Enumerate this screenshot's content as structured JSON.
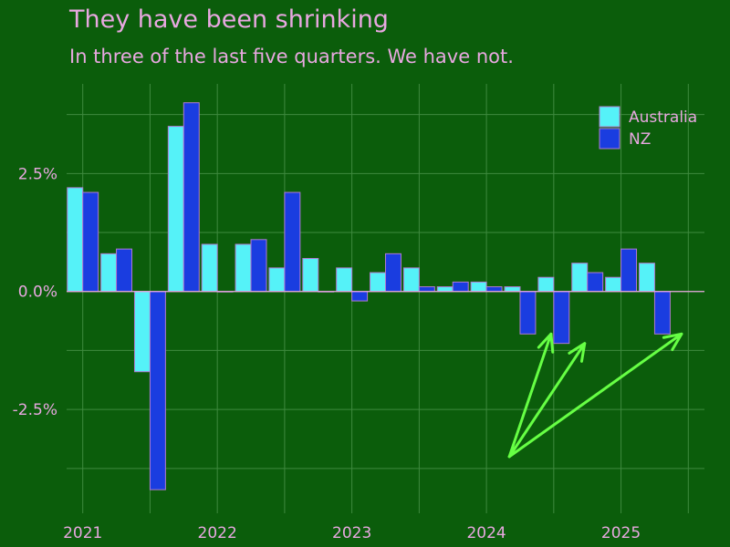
{
  "colors": {
    "background": "#0b5d0b",
    "text": "#e8a8e0",
    "grid": "#3f8a3f",
    "axis": "#e8a8e0",
    "annotation": "#66ff44"
  },
  "chart_data": {
    "type": "bar",
    "title": "They have been shrinking",
    "subtitle": "In three of the last five quarters. We have not.",
    "xlabel": "",
    "ylabel": "",
    "ylim": [
      -4.7,
      4.4
    ],
    "xlim": [
      2020.88,
      2025.62
    ],
    "y_ticks": [
      {
        "value": 2.5,
        "label": "2.5%"
      },
      {
        "value": 0,
        "label": "0.0%"
      },
      {
        "value": -2.5,
        "label": "-2.5%"
      }
    ],
    "x_ticks": [
      {
        "value": 2021,
        "label": "2021"
      },
      {
        "value": 2022,
        "label": "2022"
      },
      {
        "value": 2023,
        "label": "2023"
      },
      {
        "value": 2024,
        "label": "2024"
      },
      {
        "value": 2025,
        "label": "2025"
      }
    ],
    "x": [
      2021.0,
      2021.25,
      2021.5,
      2021.75,
      2022.0,
      2022.25,
      2022.5,
      2022.75,
      2023.0,
      2023.25,
      2023.5,
      2023.75,
      2024.0,
      2024.25,
      2024.5,
      2024.75,
      2025.0,
      2025.25,
      2025.5
    ],
    "series": [
      {
        "name": "Australia",
        "color": "#55f2f8",
        "values": [
          2.2,
          0.8,
          -1.7,
          3.5,
          1.0,
          1.0,
          0.5,
          0.7,
          0.5,
          0.4,
          0.5,
          0.1,
          0.2,
          0.1,
          0.3,
          0.6,
          0.3,
          0.6,
          null
        ]
      },
      {
        "name": "NZ",
        "color": "#1a3de0",
        "values": [
          2.1,
          0.9,
          -4.2,
          4.0,
          0.0,
          1.1,
          2.1,
          0.0,
          -0.2,
          0.8,
          0.1,
          0.2,
          0.1,
          -0.9,
          -1.1,
          0.4,
          0.9,
          -0.9,
          null
        ]
      }
    ],
    "legend_position": "top-right",
    "grid": true,
    "annotation": {
      "type": "arrows",
      "origin": [
        2024.17,
        -3.5
      ],
      "targets": [
        [
          2024.48,
          -0.9
        ],
        [
          2024.73,
          -1.1
        ],
        [
          2025.45,
          -0.9
        ]
      ]
    }
  }
}
